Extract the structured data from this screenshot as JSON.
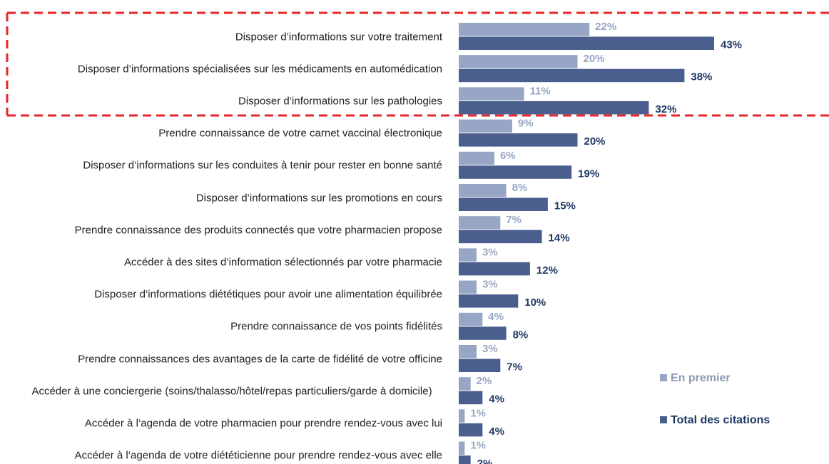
{
  "chart_data": {
    "type": "bar",
    "orientation": "horizontal",
    "categories": [
      "Disposer d’informations sur votre traitement",
      "Disposer d’informations spécialisées sur les médicaments en automédication",
      "Disposer d’informations sur les pathologies",
      "Prendre connaissance de votre carnet vaccinal électronique",
      "Disposer d’informations sur les conduites à tenir pour rester en bonne santé",
      "Disposer d’informations sur les promotions en cours",
      "Prendre connaissance des produits connectés que votre pharmacien propose",
      "Accéder à des sites d’information sélectionnés par votre pharmacie",
      "Disposer d’informations diététiques pour avoir une alimentation équilibrée",
      "Prendre connaissance de vos points fidélités",
      "Prendre connaissances des avantages de la carte de fidélité de votre officine",
      "Accéder à une conciergerie (soins/thalasso/hôtel/repas particuliers/garde à domicile)",
      "Accéder à l’agenda de votre pharmacien pour prendre rendez-vous avec lui",
      "Accéder à l’agenda de votre diététicienne pour prendre rendez-vous avec elle"
    ],
    "series": [
      {
        "name": "En premier",
        "color": "#97a6c4",
        "values": [
          22,
          20,
          11,
          9,
          6,
          8,
          7,
          3,
          3,
          4,
          3,
          2,
          1,
          1
        ],
        "value_labels": [
          "22%",
          "20%",
          "11%",
          "9%",
          "6%",
          "8%",
          "7%",
          "3%",
          "3%",
          "4%",
          "3%",
          "2%",
          "1%",
          "1%"
        ]
      },
      {
        "name": "Total des citations",
        "color": "#4a5f8e",
        "values": [
          43,
          38,
          32,
          20,
          19,
          15,
          14,
          12,
          10,
          8,
          7,
          4,
          4,
          2
        ],
        "value_labels": [
          "43%",
          "38%",
          "32%",
          "20%",
          "19%",
          "15%",
          "14%",
          "12%",
          "10%",
          "8%",
          "7%",
          "4%",
          "4%",
          "2%"
        ]
      }
    ]
  }
}
